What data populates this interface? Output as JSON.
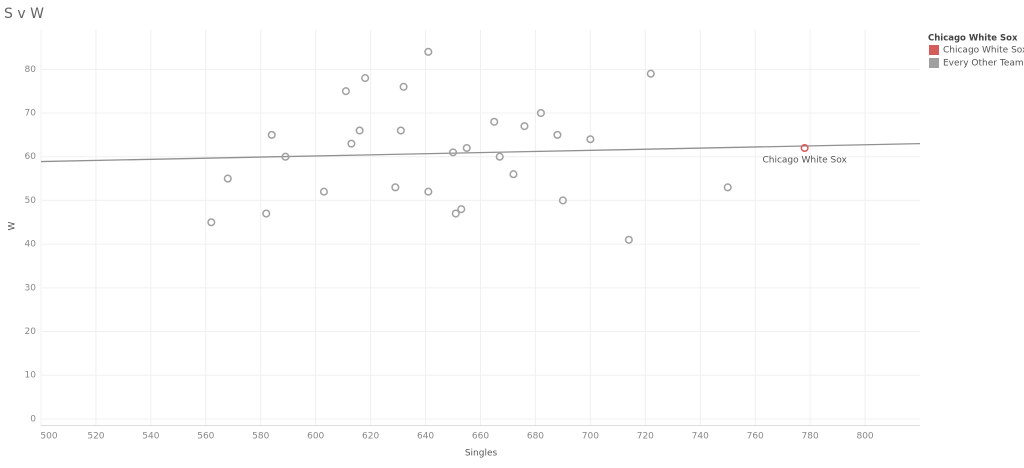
{
  "chart_data": {
    "type": "scatter",
    "title": "S v W",
    "x_label": "Singles",
    "y_label": "W",
    "xlim": [
      500,
      820
    ],
    "ylim": [
      -1.5,
      89
    ],
    "xticks": [
      500,
      520,
      540,
      560,
      580,
      600,
      620,
      640,
      660,
      680,
      700,
      720,
      740,
      760,
      780,
      800
    ],
    "yticks": [
      0,
      10,
      20,
      30,
      40,
      50,
      60,
      70,
      80
    ],
    "grid": true,
    "legend_title": "Chicago White Sox",
    "legend_position": "right",
    "series": [
      {
        "name": "Chicago White Sox",
        "color": "#d45c5c",
        "x": [
          778
        ],
        "values": [
          62
        ]
      },
      {
        "name": "Every Other Team",
        "color": "#a0a0a0",
        "x": [
          562,
          568,
          582,
          584,
          589,
          603,
          611,
          613,
          616,
          618,
          629,
          631,
          632,
          641,
          641,
          650,
          651,
          653,
          655,
          665,
          667,
          672,
          676,
          682,
          688,
          690,
          700,
          714,
          722,
          750
        ],
        "values": [
          45,
          55,
          47,
          65,
          60,
          52,
          75,
          63,
          66,
          78,
          53,
          66,
          76,
          84,
          52,
          61,
          47,
          48,
          62,
          68,
          60,
          56,
          67,
          70,
          65,
          50,
          64,
          41,
          79,
          53
        ]
      }
    ],
    "trend_line": {
      "x": [
        500,
        820
      ],
      "values": [
        58.9,
        63.0
      ],
      "color": "#909090"
    },
    "annotation": {
      "text": "Chicago White Sox",
      "x": 778,
      "values": 62
    }
  }
}
